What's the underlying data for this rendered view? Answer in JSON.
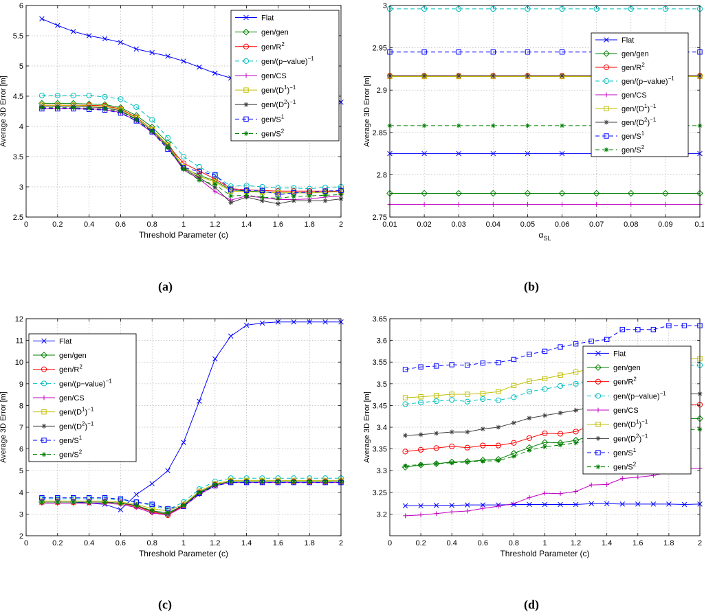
{
  "styles": {
    "Flat": {
      "color": "#0000ff",
      "dash": "",
      "marker": "x"
    },
    "gen/gen": {
      "color": "#008000",
      "dash": "",
      "marker": "diamond"
    },
    "gen/R2": {
      "color": "#ff0000",
      "dash": "",
      "marker": "circle"
    },
    "gen/p": {
      "color": "#00bfbf",
      "dash": "6,4",
      "marker": "circle"
    },
    "gen/CS": {
      "color": "#bf00bf",
      "dash": "",
      "marker": "plus"
    },
    "gen/D1": {
      "color": "#bfbf00",
      "dash": "",
      "marker": "square"
    },
    "gen/D2": {
      "color": "#404040",
      "dash": "",
      "marker": "star"
    },
    "gen/S1": {
      "color": "#0000ff",
      "dash": "6,4",
      "marker": "square"
    },
    "gen/S2": {
      "color": "#008000",
      "dash": "6,4",
      "marker": "star"
    }
  },
  "legend_entries": [
    {
      "key": "Flat",
      "base": "Flat",
      "sup": ""
    },
    {
      "key": "gen/gen",
      "base": "gen/gen",
      "sup": ""
    },
    {
      "key": "gen/R2",
      "base": "gen/R",
      "sup": "2"
    },
    {
      "key": "gen/p",
      "base": "gen/(p−value)",
      "sup": "−1"
    },
    {
      "key": "gen/CS",
      "base": "gen/CS",
      "sup": ""
    },
    {
      "key": "gen/D1",
      "base": "gen/(D",
      "sup": "1",
      "base2": ")",
      "sup2": "−1"
    },
    {
      "key": "gen/D2",
      "base": "gen/(D",
      "sup": "2",
      "base2": ")",
      "sup2": "−1"
    },
    {
      "key": "gen/S1",
      "base": "gen/S",
      "sup": "1"
    },
    {
      "key": "gen/S2",
      "base": "gen/S",
      "sup": "2"
    }
  ],
  "panel_labels": [
    "(a)",
    "(b)",
    "(c)",
    "(d)"
  ],
  "chart_data": [
    {
      "type": "line",
      "panel": "(a)",
      "xlabel": "Threshold Parameter (c)",
      "ylabel": "Average 3D Error [m]",
      "xlim": [
        0,
        2
      ],
      "ylim": [
        2.5,
        6
      ],
      "xticks": [
        "0",
        "0.2",
        "0.4",
        "0.6",
        "0.8",
        "1",
        "1.2",
        "1.4",
        "1.6",
        "1.8",
        "2"
      ],
      "yticks": [
        "2.5",
        "3",
        "3.5",
        "4",
        "4.5",
        "5",
        "5.5",
        "6"
      ],
      "grid": true,
      "legend": "top-right",
      "x": [
        0.1,
        0.2,
        0.3,
        0.4,
        0.5,
        0.6,
        0.7,
        0.8,
        0.9,
        1.0,
        1.1,
        1.2,
        1.3,
        1.4,
        1.5,
        1.6,
        1.7,
        1.8,
        1.9,
        2.0
      ],
      "series": [
        {
          "name": "Flat",
          "values": [
            5.78,
            5.67,
            5.57,
            5.5,
            5.45,
            5.39,
            5.28,
            5.22,
            5.16,
            5.08,
            4.98,
            4.88,
            4.8,
            4.76,
            4.72,
            4.68,
            4.63,
            4.58,
            4.53,
            4.4
          ]
        },
        {
          "name": "gen/gen",
          "values": [
            4.38,
            4.38,
            4.38,
            4.37,
            4.36,
            4.31,
            4.18,
            3.99,
            3.73,
            3.31,
            3.19,
            3.1,
            2.95,
            2.93,
            2.92,
            2.9,
            2.9,
            2.9,
            2.91,
            2.93
          ]
        },
        {
          "name": "gen/R2",
          "values": [
            4.35,
            4.35,
            4.35,
            4.35,
            4.34,
            4.29,
            4.15,
            3.95,
            3.69,
            3.39,
            3.26,
            3.13,
            2.97,
            2.95,
            2.94,
            2.93,
            2.93,
            2.93,
            2.93,
            2.93
          ]
        },
        {
          "name": "gen/p",
          "values": [
            4.51,
            4.51,
            4.51,
            4.51,
            4.49,
            4.45,
            4.32,
            4.11,
            3.81,
            3.5,
            3.33,
            3.19,
            3.01,
            3.02,
            3.0,
            2.98,
            2.98,
            2.97,
            2.99,
            3.0
          ]
        },
        {
          "name": "gen/CS",
          "values": [
            4.3,
            4.3,
            4.3,
            4.29,
            4.28,
            4.23,
            4.09,
            3.9,
            3.65,
            3.28,
            3.13,
            2.92,
            2.78,
            2.85,
            2.82,
            2.79,
            2.79,
            2.8,
            2.83,
            2.85
          ]
        },
        {
          "name": "gen/D1",
          "values": [
            4.35,
            4.35,
            4.35,
            4.34,
            4.33,
            4.28,
            4.14,
            3.95,
            3.69,
            3.33,
            3.17,
            3.08,
            2.93,
            2.92,
            2.91,
            2.9,
            2.9,
            2.9,
            2.91,
            2.92
          ]
        },
        {
          "name": "gen/D2",
          "values": [
            4.33,
            4.33,
            4.33,
            4.32,
            4.31,
            4.26,
            4.12,
            3.93,
            3.67,
            3.3,
            3.15,
            2.99,
            2.74,
            2.83,
            2.77,
            2.72,
            2.77,
            2.77,
            2.77,
            2.8
          ]
        },
        {
          "name": "gen/S1",
          "values": [
            4.29,
            4.29,
            4.29,
            4.28,
            4.27,
            4.22,
            4.09,
            3.91,
            3.62,
            3.32,
            3.25,
            3.2,
            2.95,
            2.94,
            2.94,
            2.87,
            2.9,
            2.91,
            2.93,
            2.94
          ]
        },
        {
          "name": "gen/S2",
          "values": [
            4.31,
            4.31,
            4.31,
            4.3,
            4.29,
            4.25,
            4.11,
            3.92,
            3.65,
            3.29,
            3.11,
            3.04,
            2.85,
            2.86,
            2.83,
            2.81,
            2.84,
            2.85,
            2.86,
            2.87
          ]
        }
      ]
    },
    {
      "type": "line",
      "panel": "(b)",
      "xlabel": "α",
      "xlabel_sub": "SL",
      "ylabel": "Average 3D Error [m]",
      "xlim": [
        0.01,
        0.1
      ],
      "ylim": [
        2.75,
        3
      ],
      "xticks": [
        "0.01",
        "0.02",
        "0.03",
        "0.04",
        "0.05",
        "0.06",
        "0.07",
        "0.08",
        "0.09",
        "0.1"
      ],
      "yticks": [
        "2.75",
        "2.8",
        "2.85",
        "2.9",
        "2.95",
        "3"
      ],
      "grid": true,
      "legend": "top-right",
      "x": [
        0.01,
        0.02,
        0.03,
        0.04,
        0.05,
        0.06,
        0.07,
        0.08,
        0.09,
        0.1
      ],
      "series": [
        {
          "name": "Flat",
          "values": [
            2.825,
            2.825,
            2.825,
            2.825,
            2.825,
            2.825,
            2.825,
            2.825,
            2.825,
            2.825
          ]
        },
        {
          "name": "gen/gen",
          "values": [
            2.778,
            2.778,
            2.778,
            2.778,
            2.778,
            2.778,
            2.778,
            2.778,
            2.778,
            2.778
          ]
        },
        {
          "name": "gen/R2",
          "values": [
            2.917,
            2.917,
            2.917,
            2.917,
            2.917,
            2.917,
            2.917,
            2.917,
            2.917,
            2.917
          ]
        },
        {
          "name": "gen/p",
          "values": [
            2.996,
            2.996,
            2.996,
            2.996,
            2.996,
            2.996,
            2.996,
            2.996,
            2.996,
            2.996
          ]
        },
        {
          "name": "gen/CS",
          "values": [
            2.765,
            2.765,
            2.765,
            2.765,
            2.765,
            2.765,
            2.765,
            2.765,
            2.765,
            2.765
          ]
        },
        {
          "name": "gen/D1",
          "values": [
            2.916,
            2.916,
            2.916,
            2.916,
            2.916,
            2.916,
            2.916,
            2.916,
            2.916,
            2.916
          ]
        },
        {
          "name": "gen/D2",
          "values": [
            2.917,
            2.917,
            2.917,
            2.917,
            2.917,
            2.917,
            2.917,
            2.917,
            2.917,
            2.917
          ]
        },
        {
          "name": "gen/S1",
          "values": [
            2.945,
            2.945,
            2.945,
            2.945,
            2.945,
            2.945,
            2.945,
            2.945,
            2.945,
            2.945
          ]
        },
        {
          "name": "gen/S2",
          "values": [
            2.858,
            2.858,
            2.858,
            2.858,
            2.858,
            2.858,
            2.858,
            2.858,
            2.858,
            2.858
          ]
        }
      ]
    },
    {
      "type": "line",
      "panel": "(c)",
      "xlabel": "Threshold Parameter (c)",
      "ylabel": "Average 3D Error [m]",
      "xlim": [
        0,
        2
      ],
      "ylim": [
        2,
        12
      ],
      "xticks": [
        "0",
        "0.2",
        "0.4",
        "0.6",
        "0.8",
        "1",
        "1.2",
        "1.4",
        "1.6",
        "1.8",
        "2"
      ],
      "yticks": [
        "2",
        "3",
        "4",
        "5",
        "6",
        "7",
        "8",
        "9",
        "10",
        "11",
        "12"
      ],
      "grid": true,
      "legend": "top-left",
      "x": [
        0.1,
        0.2,
        0.3,
        0.4,
        0.5,
        0.6,
        0.7,
        0.8,
        0.9,
        1.0,
        1.1,
        1.2,
        1.3,
        1.4,
        1.5,
        1.6,
        1.7,
        1.8,
        1.9,
        2.0
      ],
      "series": [
        {
          "name": "Flat",
          "values": [
            3.55,
            3.55,
            3.55,
            3.5,
            3.45,
            3.2,
            3.9,
            4.4,
            5.0,
            6.3,
            8.2,
            10.15,
            11.2,
            11.7,
            11.8,
            11.85,
            11.85,
            11.85,
            11.85,
            11.85
          ]
        },
        {
          "name": "gen/gen",
          "values": [
            3.55,
            3.55,
            3.55,
            3.55,
            3.55,
            3.5,
            3.4,
            3.1,
            3.0,
            3.4,
            3.95,
            4.35,
            4.5,
            4.5,
            4.5,
            4.5,
            4.5,
            4.5,
            4.5,
            4.5
          ]
        },
        {
          "name": "gen/R2",
          "values": [
            3.55,
            3.55,
            3.55,
            3.55,
            3.55,
            3.5,
            3.35,
            3.1,
            2.95,
            3.4,
            4.0,
            4.35,
            4.5,
            4.5,
            4.5,
            4.5,
            4.5,
            4.5,
            4.5,
            4.5
          ]
        },
        {
          "name": "gen/p",
          "values": [
            3.7,
            3.7,
            3.7,
            3.7,
            3.7,
            3.65,
            3.55,
            3.4,
            3.2,
            3.55,
            4.15,
            4.5,
            4.65,
            4.65,
            4.65,
            4.65,
            4.65,
            4.65,
            4.65,
            4.65
          ]
        },
        {
          "name": "gen/CS",
          "values": [
            3.5,
            3.5,
            3.5,
            3.5,
            3.5,
            3.45,
            3.3,
            3.05,
            2.95,
            3.35,
            3.9,
            4.3,
            4.45,
            4.45,
            4.45,
            4.45,
            4.45,
            4.45,
            4.45,
            4.45
          ]
        },
        {
          "name": "gen/D1",
          "values": [
            3.6,
            3.6,
            3.6,
            3.6,
            3.6,
            3.55,
            3.45,
            3.25,
            3.15,
            3.45,
            4.05,
            4.4,
            4.55,
            4.55,
            4.55,
            4.55,
            4.55,
            4.55,
            4.55,
            4.55
          ]
        },
        {
          "name": "gen/D2",
          "values": [
            3.55,
            3.55,
            3.55,
            3.55,
            3.55,
            3.5,
            3.4,
            3.15,
            3.05,
            3.4,
            4.0,
            4.35,
            4.5,
            4.5,
            4.5,
            4.5,
            4.5,
            4.5,
            4.5,
            4.5
          ]
        },
        {
          "name": "gen/S1",
          "values": [
            3.75,
            3.75,
            3.75,
            3.75,
            3.75,
            3.7,
            3.55,
            3.45,
            3.25,
            3.35,
            3.95,
            4.3,
            4.45,
            4.45,
            4.45,
            4.45,
            4.45,
            4.45,
            4.45,
            4.45
          ]
        },
        {
          "name": "gen/S2",
          "values": [
            3.55,
            3.55,
            3.55,
            3.55,
            3.55,
            3.5,
            3.4,
            3.15,
            3.05,
            3.4,
            4.0,
            4.35,
            4.5,
            4.5,
            4.5,
            4.5,
            4.5,
            4.5,
            4.5,
            4.5
          ]
        }
      ]
    },
    {
      "type": "line",
      "panel": "(d)",
      "xlabel": "Threshold Parameter (c)",
      "ylabel": "Average 3D Error [m]",
      "xlim": [
        0,
        2
      ],
      "ylim": [
        3.15,
        3.65
      ],
      "xticks": [
        "0",
        "0.2",
        "0.4",
        "0.6",
        "0.8",
        "1",
        "1.2",
        "1.4",
        "1.6",
        "1.8",
        "2"
      ],
      "yticks": [
        "3.2",
        "3.25",
        "3.3",
        "3.35",
        "3.4",
        "3.45",
        "3.5",
        "3.55",
        "3.6",
        "3.65"
      ],
      "grid": true,
      "legend": "right",
      "x": [
        0.1,
        0.2,
        0.3,
        0.4,
        0.5,
        0.6,
        0.7,
        0.8,
        0.9,
        1.0,
        1.1,
        1.2,
        1.3,
        1.4,
        1.5,
        1.6,
        1.7,
        1.8,
        1.9,
        2.0
      ],
      "series": [
        {
          "name": "Flat",
          "values": [
            3.219,
            3.219,
            3.22,
            3.22,
            3.221,
            3.221,
            3.221,
            3.222,
            3.222,
            3.222,
            3.222,
            3.222,
            3.224,
            3.224,
            3.223,
            3.223,
            3.223,
            3.223,
            3.222,
            3.223
          ]
        },
        {
          "name": "gen/gen",
          "values": [
            3.308,
            3.313,
            3.316,
            3.32,
            3.321,
            3.324,
            3.326,
            3.34,
            3.353,
            3.365,
            3.364,
            3.37,
            3.38,
            3.39,
            3.4,
            3.405,
            3.41,
            3.415,
            3.42,
            3.42
          ]
        },
        {
          "name": "gen/R2",
          "values": [
            3.344,
            3.348,
            3.352,
            3.356,
            3.353,
            3.358,
            3.358,
            3.364,
            3.375,
            3.386,
            3.385,
            3.39,
            3.405,
            3.415,
            3.425,
            3.435,
            3.44,
            3.445,
            3.452,
            3.452
          ]
        },
        {
          "name": "gen/p",
          "values": [
            3.453,
            3.457,
            3.46,
            3.463,
            3.459,
            3.465,
            3.462,
            3.469,
            3.482,
            3.488,
            3.495,
            3.5,
            3.51,
            3.518,
            3.525,
            3.53,
            3.535,
            3.54,
            3.543,
            3.543
          ]
        },
        {
          "name": "gen/CS",
          "values": [
            3.196,
            3.198,
            3.201,
            3.205,
            3.207,
            3.213,
            3.218,
            3.224,
            3.238,
            3.248,
            3.247,
            3.252,
            3.267,
            3.268,
            3.282,
            3.285,
            3.289,
            3.297,
            3.305,
            3.305
          ]
        },
        {
          "name": "gen/D1",
          "values": [
            3.468,
            3.47,
            3.473,
            3.476,
            3.476,
            3.478,
            3.482,
            3.496,
            3.506,
            3.512,
            3.52,
            3.527,
            3.535,
            3.54,
            3.545,
            3.55,
            3.553,
            3.556,
            3.558,
            3.558
          ]
        },
        {
          "name": "gen/D2",
          "values": [
            3.381,
            3.383,
            3.386,
            3.389,
            3.389,
            3.396,
            3.4,
            3.41,
            3.421,
            3.427,
            3.433,
            3.439,
            3.447,
            3.452,
            3.458,
            3.462,
            3.466,
            3.47,
            3.477,
            3.477
          ]
        },
        {
          "name": "gen/S1",
          "values": [
            3.533,
            3.539,
            3.541,
            3.544,
            3.543,
            3.548,
            3.549,
            3.556,
            3.568,
            3.575,
            3.585,
            3.592,
            3.598,
            3.602,
            3.625,
            3.625,
            3.625,
            3.634,
            3.634,
            3.634
          ]
        },
        {
          "name": "gen/S2",
          "values": [
            3.311,
            3.314,
            3.316,
            3.318,
            3.32,
            3.322,
            3.323,
            3.333,
            3.347,
            3.355,
            3.359,
            3.364,
            3.37,
            3.376,
            3.38,
            3.385,
            3.388,
            3.391,
            3.395,
            3.395
          ]
        }
      ]
    }
  ]
}
